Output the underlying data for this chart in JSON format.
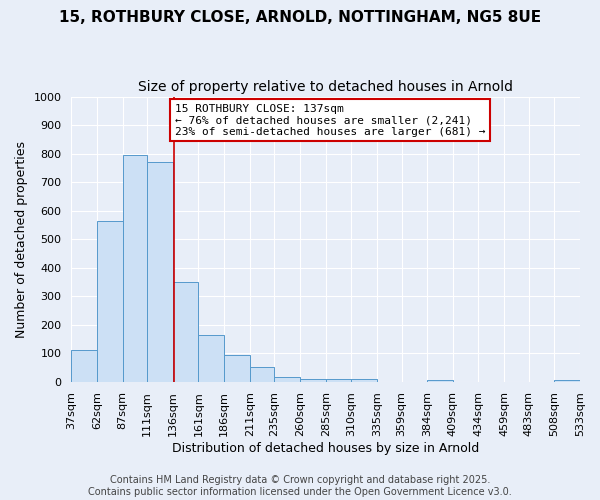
{
  "title_line1": "15, ROTHBURY CLOSE, ARNOLD, NOTTINGHAM, NG5 8UE",
  "title_line2": "Size of property relative to detached houses in Arnold",
  "xlabel": "Distribution of detached houses by size in Arnold",
  "ylabel": "Number of detached properties",
  "footer_line1": "Contains HM Land Registry data © Crown copyright and database right 2025.",
  "footer_line2": "Contains public sector information licensed under the Open Government Licence v3.0.",
  "bin_edges": [
    37,
    62,
    87,
    111,
    136,
    161,
    186,
    211,
    235,
    260,
    285,
    310,
    335,
    359,
    384,
    409,
    434,
    459,
    483,
    508,
    533
  ],
  "bin_labels": [
    "37sqm",
    "62sqm",
    "87sqm",
    "111sqm",
    "136sqm",
    "161sqm",
    "186sqm",
    "211sqm",
    "235sqm",
    "260sqm",
    "285sqm",
    "310sqm",
    "335sqm",
    "359sqm",
    "384sqm",
    "409sqm",
    "434sqm",
    "459sqm",
    "483sqm",
    "508sqm",
    "533sqm"
  ],
  "bar_heights": [
    110,
    565,
    795,
    770,
    350,
    165,
    95,
    52,
    15,
    10,
    10,
    8,
    0,
    0,
    7,
    0,
    0,
    0,
    0,
    7
  ],
  "bar_color": "#cce0f5",
  "bar_edge_color": "#5599cc",
  "property_line_x": 137,
  "property_line_color": "#cc0000",
  "annotation_text": "15 ROTHBURY CLOSE: 137sqm\n← 76% of detached houses are smaller (2,241)\n23% of semi-detached houses are larger (681) →",
  "annotation_box_color": "#ffffff",
  "annotation_box_edge_color": "#cc0000",
  "ylim": [
    0,
    1000
  ],
  "yticks": [
    0,
    100,
    200,
    300,
    400,
    500,
    600,
    700,
    800,
    900,
    1000
  ],
  "bg_color": "#e8eef8",
  "grid_color": "#ffffff",
  "title_fontsize": 11,
  "subtitle_fontsize": 10,
  "axis_label_fontsize": 9,
  "tick_fontsize": 8,
  "annotation_fontsize": 8,
  "footer_fontsize": 7
}
